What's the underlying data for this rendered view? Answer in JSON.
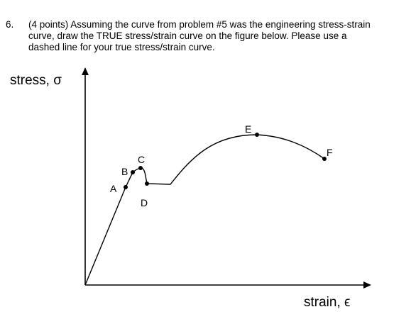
{
  "question": {
    "number": "6.",
    "lines": [
      "(4 points) Assuming the curve from problem #5 was the engineering stress-strain",
      "curve, draw the TRUE stress/strain curve on the figure below.  Please use a",
      "dashed line for your true stress/strain curve."
    ]
  },
  "figure": {
    "y_label": "stress, σ",
    "x_label": "strain, ϵ",
    "points": [
      "A",
      "B",
      "C",
      "D",
      "E",
      "F"
    ]
  }
}
